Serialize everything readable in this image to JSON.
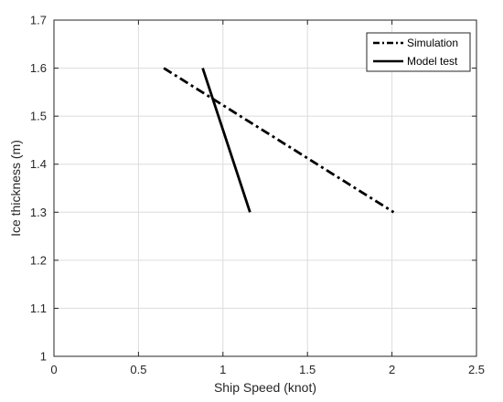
{
  "chart_data": {
    "type": "line",
    "title": "",
    "xlabel": "Ship Speed (knot)",
    "ylabel": "Ice thickness (m)",
    "xlim": [
      0,
      2.5
    ],
    "ylim": [
      1,
      1.7
    ],
    "xticks": [
      0,
      0.5,
      1,
      1.5,
      2,
      2.5
    ],
    "xtick_labels": [
      "0",
      "0.5",
      "1",
      "1.5",
      "2",
      "2.5"
    ],
    "yticks": [
      1,
      1.1,
      1.2,
      1.3,
      1.4,
      1.5,
      1.6,
      1.7
    ],
    "ytick_labels": [
      "1",
      "1.1",
      "1.2",
      "1.3",
      "1.4",
      "1.5",
      "1.6",
      "1.7"
    ],
    "grid": true,
    "legend_position": "top-right",
    "series": [
      {
        "name": "Simulation",
        "style": "dash-dot",
        "color": "#000000",
        "x": [
          0.65,
          2.01
        ],
        "y": [
          1.6,
          1.3
        ]
      },
      {
        "name": "Model test",
        "style": "solid",
        "color": "#000000",
        "x": [
          0.88,
          1.16
        ],
        "y": [
          1.6,
          1.3
        ]
      }
    ]
  }
}
